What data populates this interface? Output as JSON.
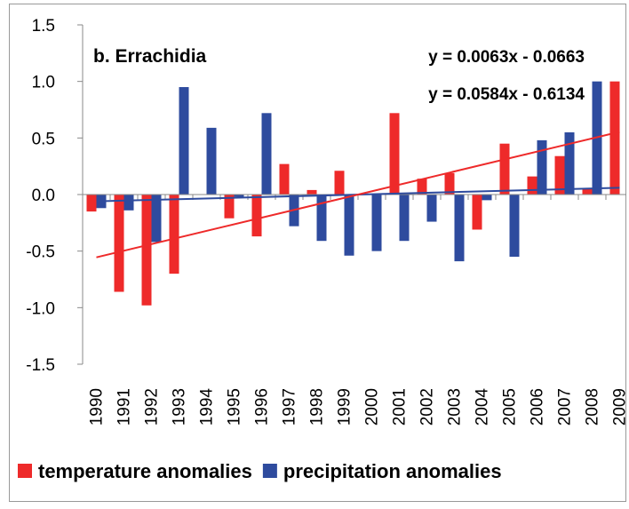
{
  "chart_data": {
    "type": "bar",
    "title": "b. Errachidia",
    "categories": [
      "1990",
      "1991",
      "1992",
      "1993",
      "1994",
      "1995",
      "1996",
      "1997",
      "1998",
      "1999",
      "2000",
      "2001",
      "2002",
      "2003",
      "2004",
      "2005",
      "2006",
      "2007",
      "2008",
      "2009"
    ],
    "series": [
      {
        "name": "temperature anomalies",
        "color": "#ee2a2a",
        "values": [
          -0.15,
          -0.86,
          -0.98,
          -0.7,
          0,
          -0.21,
          -0.37,
          0.27,
          0.04,
          0.21,
          0,
          0.72,
          0.14,
          0.19,
          -0.31,
          0.45,
          0.16,
          0.34,
          0.05,
          1.0
        ]
      },
      {
        "name": "precipitation anomalies",
        "color": "#2e4b9e",
        "values": [
          -0.12,
          -0.14,
          -0.42,
          0.95,
          0.59,
          -0.02,
          0.72,
          -0.28,
          -0.41,
          -0.54,
          -0.5,
          -0.41,
          -0.24,
          -0.59,
          -0.05,
          -0.55,
          0.48,
          0.55,
          1.0,
          0
        ]
      }
    ],
    "trendlines": [
      {
        "label": "y = 0.0063x - 0.0663",
        "slope": 0.0063,
        "intercept": -0.0663,
        "color": "#2e4b9e"
      },
      {
        "label": "y = 0.0584x - 0.6134",
        "slope": 0.0584,
        "intercept": -0.6134,
        "color": "#ee2a2a"
      }
    ],
    "ylim": [
      -1.5,
      1.5
    ],
    "yticks": [
      {
        "value": -1.5,
        "label": "-1.5"
      },
      {
        "value": -1,
        "label": "-1.0"
      },
      {
        "value": -0.5,
        "label": "-0.5"
      },
      {
        "value": 0,
        "label": "0.0"
      },
      {
        "value": 0.5,
        "label": "0.5"
      },
      {
        "value": 1,
        "label": "1.0"
      },
      {
        "value": 1.5,
        "label": "1.5"
      }
    ],
    "legend": "bottom"
  }
}
